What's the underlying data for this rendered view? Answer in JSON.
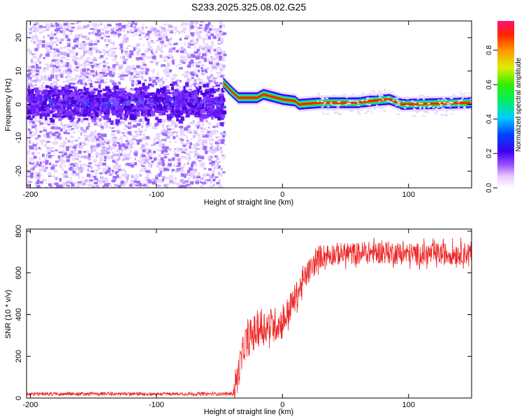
{
  "title": "S233.2025.325.08.02.G25",
  "chart_data": [
    {
      "type": "heatmap",
      "title": "S233.2025.325.08.02.G25",
      "xlabel": "Height of straight line (km)",
      "ylabel": "Frequency (Hz)",
      "xlim": [
        -203,
        150
      ],
      "ylim": [
        -25,
        25
      ],
      "xticks": [
        -200,
        -100,
        0,
        100
      ],
      "yticks": [
        -20,
        -10,
        0,
        10,
        20
      ],
      "x_tick_labels": [
        "-200",
        "-100",
        "0",
        "100"
      ],
      "y_tick_labels": [
        "-20",
        "-10",
        "0",
        "10",
        "20"
      ],
      "colorbar": {
        "label": "Normalized spectral amplitude",
        "range": [
          0,
          0.97
        ],
        "ticks": [
          0.0,
          0.2,
          0.4,
          0.6,
          0.8
        ],
        "tick_labels": [
          "0.0",
          "0.2",
          "0.4",
          "0.6",
          "0.8"
        ]
      },
      "description_ridge": [
        {
          "x": -203,
          "y": 1.0
        },
        {
          "x": -150,
          "y": 0.5
        },
        {
          "x": -100,
          "y": 1.0
        },
        {
          "x": -48,
          "y": 0.5
        },
        {
          "x": -47,
          "y": 6.5
        },
        {
          "x": -42,
          "y": 4.5
        },
        {
          "x": -35,
          "y": 2.0
        },
        {
          "x": -20,
          "y": 2.0
        },
        {
          "x": -15,
          "y": 3.0
        },
        {
          "x": 0,
          "y": 1.5
        },
        {
          "x": 10,
          "y": 1.0
        },
        {
          "x": 13,
          "y": 0.0
        },
        {
          "x": 30,
          "y": 0.5
        },
        {
          "x": 60,
          "y": 0.5
        },
        {
          "x": 70,
          "y": 1.0
        },
        {
          "x": 85,
          "y": 1.5
        },
        {
          "x": 95,
          "y": 0.0
        },
        {
          "x": 150,
          "y": 0.5
        }
      ]
    },
    {
      "type": "line",
      "xlabel": "Height of straight line (km)",
      "ylabel": "SNR (10 * v/v)",
      "xlim": [
        -203,
        150
      ],
      "ylim": [
        0,
        810
      ],
      "xticks": [
        -200,
        -100,
        0,
        100
      ],
      "yticks": [
        0,
        200,
        400,
        600,
        800
      ],
      "x_tick_labels": [
        "-200",
        "-100",
        "0",
        "100"
      ],
      "y_tick_labels": [
        "0",
        "200",
        "400",
        "600",
        "800"
      ],
      "series": [
        {
          "name": "SNR",
          "color": "#ee2222",
          "trend": {
            "x": [
              -203,
              -40,
              -38,
              -30,
              -20,
              -10,
              0,
              10,
              20,
              30,
              40,
              50,
              80,
              100,
              120,
              150
            ],
            "y": [
              20,
              20,
              40,
              260,
              330,
              350,
              360,
              480,
              600,
              680,
              690,
              690,
              700,
              690,
              690,
              695
            ]
          },
          "noise_amplitude": {
            "x": [
              -203,
              -40,
              -37,
              -20,
              0,
              20,
              40,
              150
            ],
            "y": [
              8,
              8,
              70,
              90,
              80,
              60,
              55,
              55
            ]
          }
        }
      ]
    }
  ]
}
